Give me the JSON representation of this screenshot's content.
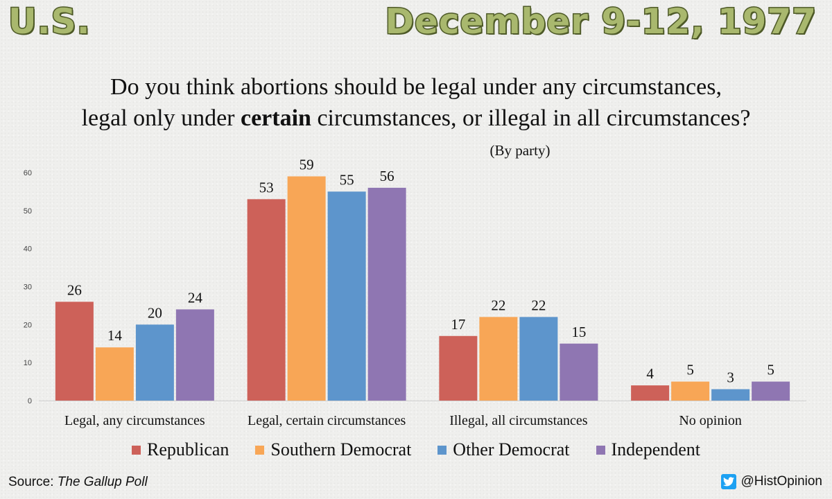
{
  "header": {
    "region": "U.S.",
    "date": "December 9-12, 1977"
  },
  "question": {
    "line1": "Do you think abortions should be legal under any circumstances,",
    "line2_before": "legal only under ",
    "line2_bold": "certain",
    "line2_after": " circumstances, or illegal in all circumstances?",
    "subtitle": "(By party)"
  },
  "chart_data": {
    "type": "bar",
    "title": "Do you think abortions should be legal under any circumstances, legal only under certain circumstances, or illegal in all circumstances?",
    "subtitle": "(By party)",
    "xlabel": "",
    "ylabel": "",
    "ylim": [
      0,
      65
    ],
    "yticks": [
      0,
      10,
      20,
      30,
      40,
      50,
      60
    ],
    "grid": false,
    "legend_position": "bottom",
    "categories": [
      "Legal, any circumstances",
      "Legal, certain circumstances",
      "Illegal, all circumstances",
      "No opinion"
    ],
    "series": [
      {
        "name": "Republican",
        "color": "#cd6159",
        "values": [
          26,
          53,
          17,
          4
        ]
      },
      {
        "name": "Southern Democrat",
        "color": "#f8a656",
        "values": [
          14,
          59,
          22,
          5
        ]
      },
      {
        "name": "Other Democrat",
        "color": "#5d95cc",
        "values": [
          20,
          55,
          22,
          3
        ]
      },
      {
        "name": "Independent",
        "color": "#8f76b2",
        "values": [
          24,
          56,
          15,
          5
        ]
      }
    ]
  },
  "footer": {
    "source_label": "Source: ",
    "source_name": "The Gallup Poll",
    "credit": "@HistOpinion",
    "credit_icon": "twitter-bird-icon"
  }
}
